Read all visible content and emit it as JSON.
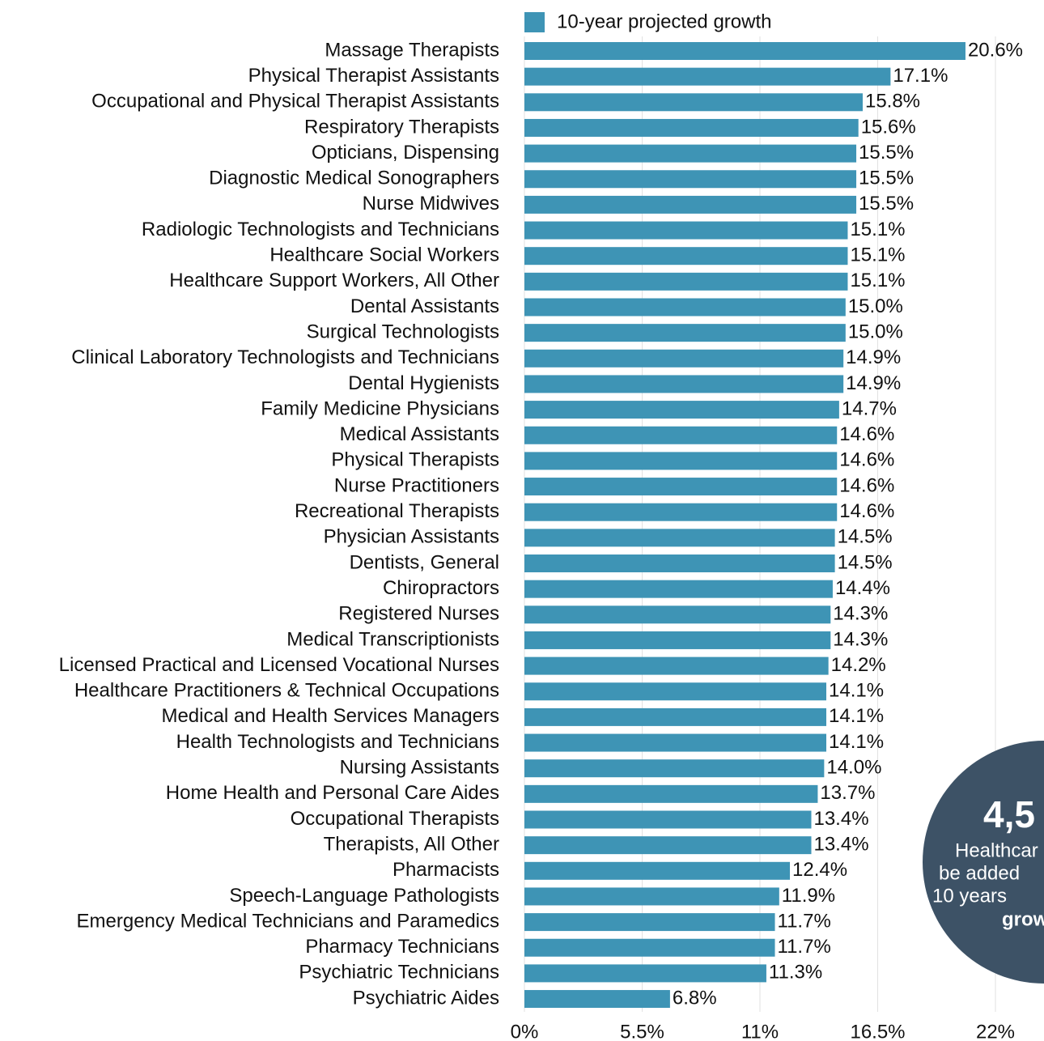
{
  "chart_data": {
    "type": "bar",
    "orientation": "horizontal",
    "legend": "10-year projected growth",
    "legend_position": "top",
    "color": "#3e94b5",
    "grid": true,
    "categories": [
      "Massage Therapists",
      "Physical Therapist Assistants",
      "Occupational and Physical Therapist Assistants",
      "Respiratory Therapists",
      "Opticians, Dispensing",
      "Diagnostic Medical Sonographers",
      "Nurse Midwives",
      "Radiologic Technologists and Technicians",
      "Healthcare Social Workers",
      "Healthcare Support Workers, All Other",
      "Dental Assistants",
      "Surgical Technologists",
      "Clinical Laboratory Technologists and Technicians",
      "Dental Hygienists",
      "Family Medicine Physicians",
      "Medical Assistants",
      "Physical Therapists",
      "Nurse Practitioners",
      "Recreational Therapists",
      "Physician Assistants",
      "Dentists, General",
      "Chiropractors",
      "Registered Nurses",
      "Medical Transcriptionists",
      "Licensed Practical and Licensed Vocational Nurses",
      "Healthcare Practitioners & Technical Occupations",
      "Medical and Health Services Managers",
      "Health Technologists and Technicians",
      "Nursing Assistants",
      "Home Health and Personal Care Aides",
      "Occupational Therapists",
      "Therapists, All Other",
      "Pharmacists",
      "Speech-Language Pathologists",
      "Emergency Medical Technicians and Paramedics",
      "Pharmacy Technicians",
      "Psychiatric Technicians",
      "Psychiatric Aides"
    ],
    "values": [
      20.6,
      17.1,
      15.8,
      15.6,
      15.5,
      15.5,
      15.5,
      15.1,
      15.1,
      15.1,
      15.0,
      15.0,
      14.9,
      14.9,
      14.7,
      14.6,
      14.6,
      14.6,
      14.6,
      14.5,
      14.5,
      14.4,
      14.3,
      14.3,
      14.2,
      14.1,
      14.1,
      14.1,
      14.0,
      13.7,
      13.4,
      13.4,
      12.4,
      11.9,
      11.7,
      11.7,
      11.3,
      6.8
    ],
    "value_labels": [
      "20.6%",
      "17.1%",
      "15.8%",
      "15.6%",
      "15.5%",
      "15.5%",
      "15.5%",
      "15.1%",
      "15.1%",
      "15.1%",
      "15.0%",
      "15.0%",
      "14.9%",
      "14.9%",
      "14.7%",
      "14.6%",
      "14.6%",
      "14.6%",
      "14.6%",
      "14.5%",
      "14.5%",
      "14.4%",
      "14.3%",
      "14.3%",
      "14.2%",
      "14.1%",
      "14.1%",
      "14.1%",
      "14.0%",
      "13.7%",
      "13.4%",
      "13.4%",
      "12.4%",
      "11.9%",
      "11.7%",
      "11.7%",
      "11.3%",
      "6.8%"
    ],
    "xlim": [
      0,
      22
    ],
    "xticks": [
      {
        "value": 0,
        "label": "0%"
      },
      {
        "value": 5.5,
        "label": "5.5%"
      },
      {
        "value": 11,
        "label": "11%"
      },
      {
        "value": 16.5,
        "label": "16.5%"
      },
      {
        "value": 22,
        "label": "22%"
      }
    ],
    "annotation": {
      "headline": "4,5",
      "lines": [
        "Healthcar",
        "be added",
        "10 years"
      ],
      "emphasis": "grow"
    }
  }
}
